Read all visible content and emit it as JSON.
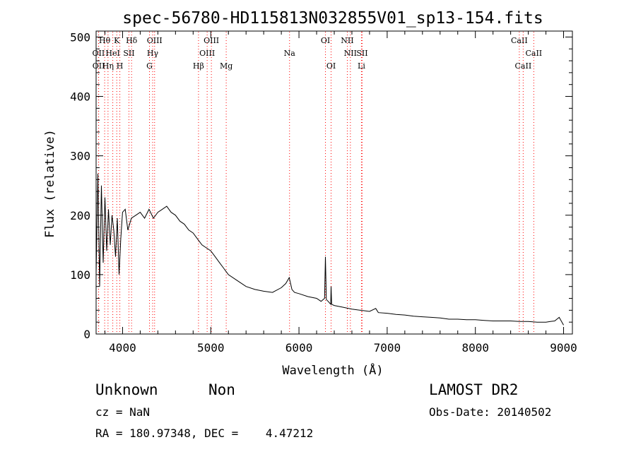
{
  "chart_data": {
    "type": "line",
    "title": "spec-56780-HD115813N032855V01_sp13-154.fits",
    "xlabel": "Wavelength (Å)",
    "ylabel": "Flux (relative)",
    "xlim": [
      3700,
      9100
    ],
    "ylim": [
      0,
      510
    ],
    "xticks": [
      4000,
      5000,
      6000,
      7000,
      8000,
      9000
    ],
    "yticks": [
      0,
      100,
      200,
      300,
      400,
      500
    ],
    "grid": false,
    "line_color": "#000000",
    "marker_color": "#ff0000",
    "series": [
      {
        "x": [
          3700,
          3720,
          3740,
          3760,
          3780,
          3800,
          3820,
          3840,
          3860,
          3880,
          3900,
          3920,
          3940,
          3960,
          3980,
          4000,
          4030,
          4060,
          4100,
          4150,
          4200,
          4250,
          4300,
          4350,
          4400,
          4450,
          4500,
          4550,
          4600,
          4650,
          4700,
          4750,
          4800,
          4850,
          4900,
          4950,
          5000,
          5050,
          5100,
          5150,
          5200,
          5300,
          5400,
          5500,
          5600,
          5700,
          5800,
          5850,
          5890,
          5920,
          5950,
          6000,
          6100,
          6200,
          6250,
          6290,
          6300,
          6310,
          6330,
          6360,
          6364,
          6370,
          6400,
          6500,
          6600,
          6700,
          6800,
          6870,
          6900,
          7000,
          7100,
          7200,
          7300,
          7400,
          7500,
          7600,
          7700,
          7800,
          7900,
          8000,
          8100,
          8200,
          8300,
          8400,
          8500,
          8600,
          8700,
          8800,
          8850,
          8900,
          8950,
          9000
        ],
        "values": [
          100,
          270,
          80,
          250,
          120,
          230,
          140,
          210,
          150,
          200,
          175,
          130,
          195,
          100,
          160,
          205,
          210,
          175,
          195,
          200,
          205,
          195,
          210,
          195,
          205,
          210,
          215,
          205,
          200,
          190,
          185,
          175,
          170,
          160,
          150,
          145,
          140,
          130,
          120,
          110,
          100,
          90,
          80,
          75,
          72,
          70,
          78,
          85,
          95,
          75,
          70,
          68,
          63,
          60,
          55,
          60,
          130,
          58,
          55,
          50,
          80,
          50,
          48,
          45,
          42,
          40,
          38,
          43,
          36,
          35,
          33,
          32,
          30,
          29,
          28,
          27,
          25,
          25,
          24,
          24,
          23,
          22,
          22,
          22,
          21,
          21,
          20,
          20,
          21,
          22,
          28,
          15
        ]
      }
    ],
    "line_markers": [
      {
        "label": "Hθ",
        "x": 3797,
        "row": 0
      },
      {
        "label": "K",
        "x": 3934,
        "row": 0
      },
      {
        "label": "Hδ",
        "x": 4102,
        "row": 0
      },
      {
        "label": "OIII",
        "x": 4363,
        "row": 0
      },
      {
        "label": "OIII",
        "x": 5007,
        "row": 0
      },
      {
        "label": "OI",
        "x": 6300,
        "row": 0
      },
      {
        "label": "NII",
        "x": 6548,
        "row": 0
      },
      {
        "label": "CaII",
        "x": 8498,
        "row": 0
      },
      {
        "label": "OII",
        "x": 3727,
        "row": 1
      },
      {
        "label": "HeI",
        "x": 3889,
        "row": 1
      },
      {
        "label": "SII",
        "x": 4072,
        "row": 1
      },
      {
        "label": "Hγ",
        "x": 4341,
        "row": 1
      },
      {
        "label": "OIII",
        "x": 4959,
        "row": 1
      },
      {
        "label": "Na",
        "x": 5893,
        "row": 1
      },
      {
        "label": "NII",
        "x": 6583,
        "row": 1
      },
      {
        "label": "SII",
        "x": 6716,
        "row": 1
      },
      {
        "label": "CaII",
        "x": 8662,
        "row": 1
      },
      {
        "label": "OII",
        "x": 3729,
        "row": 2
      },
      {
        "label": "Hη",
        "x": 3835,
        "row": 2
      },
      {
        "label": "H",
        "x": 3969,
        "row": 2
      },
      {
        "label": "G",
        "x": 4305,
        "row": 2
      },
      {
        "label": "Hβ",
        "x": 4861,
        "row": 2
      },
      {
        "label": "Mg",
        "x": 5175,
        "row": 2
      },
      {
        "label": "OI",
        "x": 6364,
        "row": 2
      },
      {
        "label": "Li",
        "x": 6708,
        "row": 2
      },
      {
        "label": "CaII",
        "x": 8542,
        "row": 2
      }
    ],
    "annotations": {
      "class": "Unknown",
      "subclass": "Non",
      "survey": "LAMOST DR2",
      "cz": "cz = NaN",
      "obs_date": "Obs-Date: 20140502",
      "coords": "RA = 180.97348, DEC =    4.47212"
    }
  }
}
